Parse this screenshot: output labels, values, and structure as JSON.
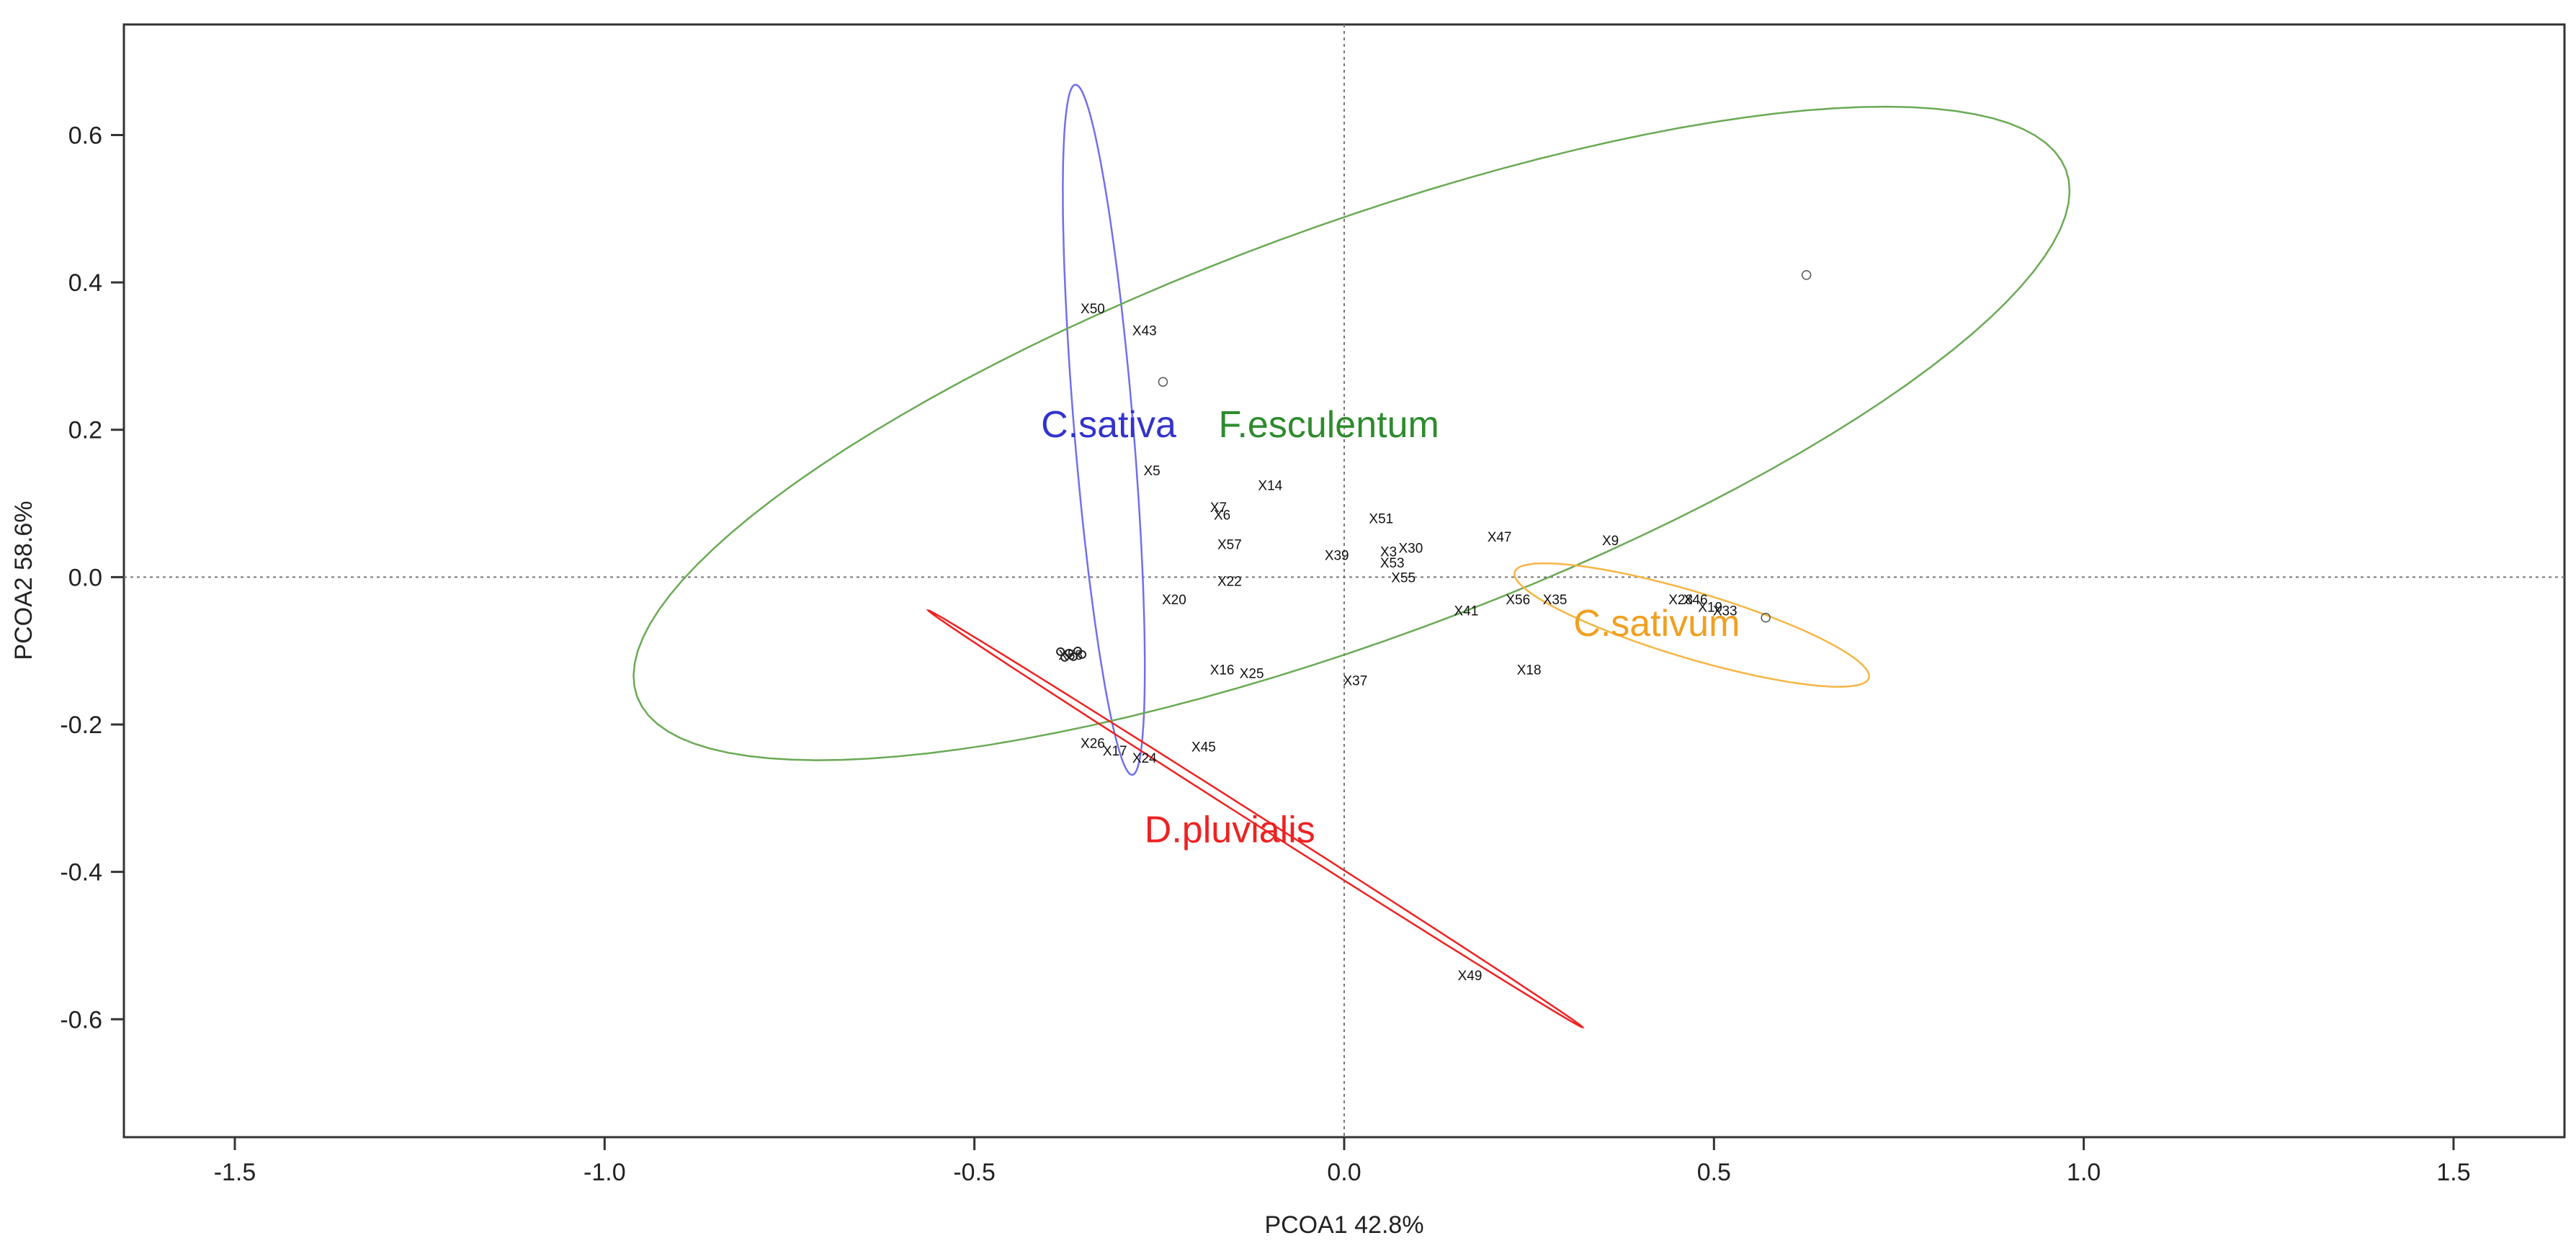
{
  "chart_data": {
    "type": "scatter",
    "title": "",
    "xlabel": "PCOA1 42.8%",
    "ylabel": "PCOA2 58.6%",
    "xlim": [
      -1.65,
      1.65
    ],
    "ylim": [
      -0.76,
      0.75
    ],
    "xticks": [
      -1.5,
      -1.0,
      -0.5,
      0.0,
      0.5,
      1.0,
      1.5
    ],
    "xtick_labels": [
      "-1.5",
      "-1.0",
      "-0.5",
      "0.0",
      "0.5",
      "1.0",
      "1.5"
    ],
    "yticks": [
      -0.6,
      -0.4,
      -0.2,
      0.0,
      0.2,
      0.4,
      0.6
    ],
    "ytick_labels": [
      "-0.6",
      "-0.4",
      "-0.2",
      "0.0",
      "0.2",
      "0.4",
      "0.6"
    ],
    "reference_lines": {
      "x": 0,
      "y": 0
    },
    "groups": [
      {
        "name": "C.sativa",
        "color": "#3333cc",
        "ellipse_color": "#7070ee",
        "ellipse": {
          "cx": -0.325,
          "cy": 0.2,
          "rx": 0.47,
          "ry": 0.04,
          "angle_deg": -85.3
        },
        "label_pos": [
          -0.41,
          0.19
        ]
      },
      {
        "name": "F.esculentum",
        "color": "#2e8b2e",
        "ellipse_color": "#6aaa55",
        "ellipse": {
          "cx": 0.01,
          "cy": 0.195,
          "rx": 1.03,
          "ry": 0.28,
          "angle_deg": 20.3
        },
        "label_pos": [
          -0.17,
          0.19
        ]
      },
      {
        "name": "D.pluvialis",
        "color": "#ee2222",
        "ellipse_color": "#ee2222",
        "ellipse": {
          "cx": -0.12,
          "cy": -0.328,
          "rx": 0.525,
          "ry": 0.006,
          "angle_deg": -32.6
        },
        "label_pos": [
          -0.27,
          -0.36
        ]
      },
      {
        "name": "C.sativum",
        "color": "#f0a020",
        "ellipse_color": "#f5b545",
        "ellipse": {
          "cx": 0.47,
          "cy": -0.065,
          "rx": 0.25,
          "ry": 0.045,
          "angle_deg": -16.7
        },
        "label_pos": [
          0.31,
          -0.08
        ]
      }
    ],
    "points": [
      {
        "label": "X50",
        "x": -0.34,
        "y": 0.365
      },
      {
        "label": "X43",
        "x": -0.27,
        "y": 0.335
      },
      {
        "label": "",
        "x": -0.245,
        "y": 0.265
      },
      {
        "label": "X5",
        "x": -0.26,
        "y": 0.145
      },
      {
        "label": "X14",
        "x": -0.1,
        "y": 0.125
      },
      {
        "label": "X7",
        "x": -0.17,
        "y": 0.095
      },
      {
        "label": "X6",
        "x": -0.165,
        "y": 0.085
      },
      {
        "label": "X51",
        "x": 0.05,
        "y": 0.08
      },
      {
        "label": "X57",
        "x": -0.155,
        "y": 0.045
      },
      {
        "label": "X47",
        "x": 0.21,
        "y": 0.055
      },
      {
        "label": "X9",
        "x": 0.36,
        "y": 0.05
      },
      {
        "label": "X39",
        "x": -0.01,
        "y": 0.03
      },
      {
        "label": "X3",
        "x": 0.06,
        "y": 0.035
      },
      {
        "label": "X30",
        "x": 0.09,
        "y": 0.04
      },
      {
        "label": "X53",
        "x": 0.065,
        "y": 0.02
      },
      {
        "label": "X55",
        "x": 0.08,
        "y": 0.0
      },
      {
        "label": "X22",
        "x": -0.155,
        "y": -0.005
      },
      {
        "label": "X20",
        "x": -0.23,
        "y": -0.03
      },
      {
        "label": "X56",
        "x": 0.235,
        "y": -0.03
      },
      {
        "label": "X35",
        "x": 0.285,
        "y": -0.03
      },
      {
        "label": "X41",
        "x": 0.165,
        "y": -0.045
      },
      {
        "label": "X28",
        "x": 0.455,
        "y": -0.03
      },
      {
        "label": "X46",
        "x": 0.475,
        "y": -0.03
      },
      {
        "label": "X19",
        "x": 0.495,
        "y": -0.04
      },
      {
        "label": "X33",
        "x": 0.515,
        "y": -0.045
      },
      {
        "label": "",
        "x": 0.57,
        "y": -0.055
      },
      {
        "label": "",
        "x": 0.625,
        "y": 0.41
      },
      {
        "label": "X58",
        "x": -0.37,
        "y": -0.105
      },
      {
        "label": "X18",
        "x": 0.25,
        "y": -0.125
      },
      {
        "label": "X16",
        "x": -0.165,
        "y": -0.125
      },
      {
        "label": "X25",
        "x": -0.125,
        "y": -0.13
      },
      {
        "label": "X37",
        "x": 0.015,
        "y": -0.14
      },
      {
        "label": "X26",
        "x": -0.34,
        "y": -0.225
      },
      {
        "label": "X17",
        "x": -0.31,
        "y": -0.235
      },
      {
        "label": "X24",
        "x": -0.27,
        "y": -0.245
      },
      {
        "label": "X45",
        "x": -0.19,
        "y": -0.23
      },
      {
        "label": "X49",
        "x": 0.17,
        "y": -0.54
      }
    ]
  }
}
